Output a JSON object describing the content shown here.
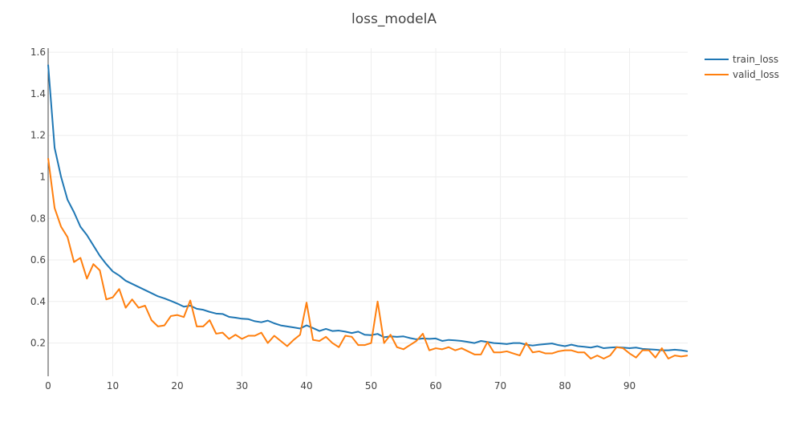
{
  "chart_data": {
    "type": "line",
    "title": "loss_modelA",
    "xlabel": "",
    "ylabel": "",
    "xlim": [
      0,
      99
    ],
    "ylim": [
      0.04,
      1.62
    ],
    "x_ticks": [
      0,
      10,
      20,
      30,
      40,
      50,
      60,
      70,
      80,
      90
    ],
    "y_ticks": [
      0.2,
      0.4,
      0.6,
      0.8,
      1,
      1.2,
      1.4,
      1.6
    ],
    "grid": true,
    "legend_position": "top-right",
    "series": [
      {
        "name": "train_loss",
        "color": "#1f77b4",
        "values": [
          1.54,
          1.14,
          1.0,
          0.89,
          0.83,
          0.76,
          0.72,
          0.67,
          0.62,
          0.58,
          0.545,
          0.525,
          0.5,
          0.485,
          0.47,
          0.455,
          0.44,
          0.425,
          0.415,
          0.403,
          0.39,
          0.375,
          0.38,
          0.365,
          0.36,
          0.35,
          0.342,
          0.34,
          0.326,
          0.322,
          0.317,
          0.315,
          0.305,
          0.3,
          0.308,
          0.295,
          0.285,
          0.28,
          0.275,
          0.27,
          0.285,
          0.272,
          0.258,
          0.268,
          0.258,
          0.26,
          0.255,
          0.248,
          0.255,
          0.24,
          0.238,
          0.244,
          0.228,
          0.232,
          0.23,
          0.232,
          0.224,
          0.218,
          0.222,
          0.22,
          0.222,
          0.21,
          0.215,
          0.213,
          0.21,
          0.205,
          0.2,
          0.21,
          0.205,
          0.2,
          0.198,
          0.195,
          0.2,
          0.2,
          0.192,
          0.188,
          0.192,
          0.195,
          0.198,
          0.19,
          0.185,
          0.192,
          0.185,
          0.182,
          0.178,
          0.185,
          0.175,
          0.178,
          0.18,
          0.178,
          0.175,
          0.178,
          0.172,
          0.17,
          0.168,
          0.165,
          0.165,
          0.168,
          0.165,
          0.16
        ]
      },
      {
        "name": "valid_loss",
        "color": "#ff7f0e",
        "values": [
          1.09,
          0.85,
          0.76,
          0.71,
          0.59,
          0.61,
          0.51,
          0.58,
          0.55,
          0.41,
          0.42,
          0.46,
          0.37,
          0.41,
          0.37,
          0.38,
          0.31,
          0.28,
          0.285,
          0.33,
          0.335,
          0.325,
          0.405,
          0.28,
          0.28,
          0.31,
          0.245,
          0.25,
          0.22,
          0.24,
          0.22,
          0.235,
          0.235,
          0.25,
          0.2,
          0.235,
          0.21,
          0.185,
          0.215,
          0.24,
          0.395,
          0.215,
          0.21,
          0.23,
          0.2,
          0.18,
          0.235,
          0.23,
          0.19,
          0.19,
          0.2,
          0.4,
          0.2,
          0.24,
          0.18,
          0.17,
          0.19,
          0.21,
          0.245,
          0.165,
          0.175,
          0.17,
          0.18,
          0.165,
          0.175,
          0.16,
          0.145,
          0.145,
          0.205,
          0.155,
          0.155,
          0.16,
          0.15,
          0.14,
          0.2,
          0.155,
          0.16,
          0.15,
          0.15,
          0.16,
          0.165,
          0.165,
          0.155,
          0.155,
          0.125,
          0.14,
          0.125,
          0.14,
          0.18,
          0.175,
          0.15,
          0.13,
          0.165,
          0.165,
          0.13,
          0.175,
          0.125,
          0.14,
          0.135,
          0.14
        ]
      }
    ]
  }
}
